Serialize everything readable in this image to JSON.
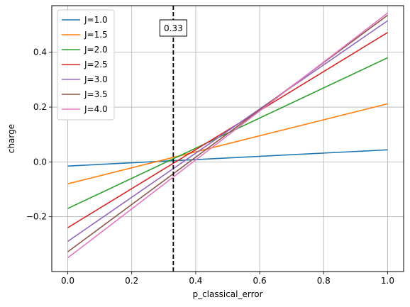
{
  "chart_data": {
    "type": "line",
    "xlabel": "p_classical_error",
    "ylabel": "charge",
    "xlim": [
      -0.05,
      1.05
    ],
    "ylim": [
      -0.4,
      0.57
    ],
    "xticks": [
      0.0,
      0.2,
      0.4,
      0.6,
      0.8,
      1.0
    ],
    "xtick_labels": [
      "0.0",
      "0.2",
      "0.4",
      "0.6",
      "0.8",
      "1.0"
    ],
    "yticks": [
      -0.2,
      0.0,
      0.2,
      0.4
    ],
    "ytick_labels": [
      "−0.2",
      "0.0",
      "0.2",
      "0.4"
    ],
    "grid": true,
    "legend_position": "top-left",
    "x": [
      0.0,
      1.0
    ],
    "series": [
      {
        "name": "J=1.0",
        "color": "#1f77b4",
        "values": [
          -0.015,
          0.044
        ]
      },
      {
        "name": "J=1.5",
        "color": "#ff7f0e",
        "values": [
          -0.08,
          0.212
        ]
      },
      {
        "name": "J=2.0",
        "color": "#2ca02c",
        "values": [
          -0.17,
          0.38
        ]
      },
      {
        "name": "J=2.5",
        "color": "#d62728",
        "values": [
          -0.24,
          0.472
        ]
      },
      {
        "name": "J=3.0",
        "color": "#9467bd",
        "values": [
          -0.29,
          0.515
        ]
      },
      {
        "name": "J=3.5",
        "color": "#8c564b",
        "values": [
          -0.328,
          0.535
        ]
      },
      {
        "name": "J=4.0",
        "color": "#e377c2",
        "values": [
          -0.35,
          0.543
        ]
      }
    ],
    "vline": {
      "x": 0.33,
      "label": "0.33",
      "color": "#000000",
      "style": "dashed"
    }
  }
}
